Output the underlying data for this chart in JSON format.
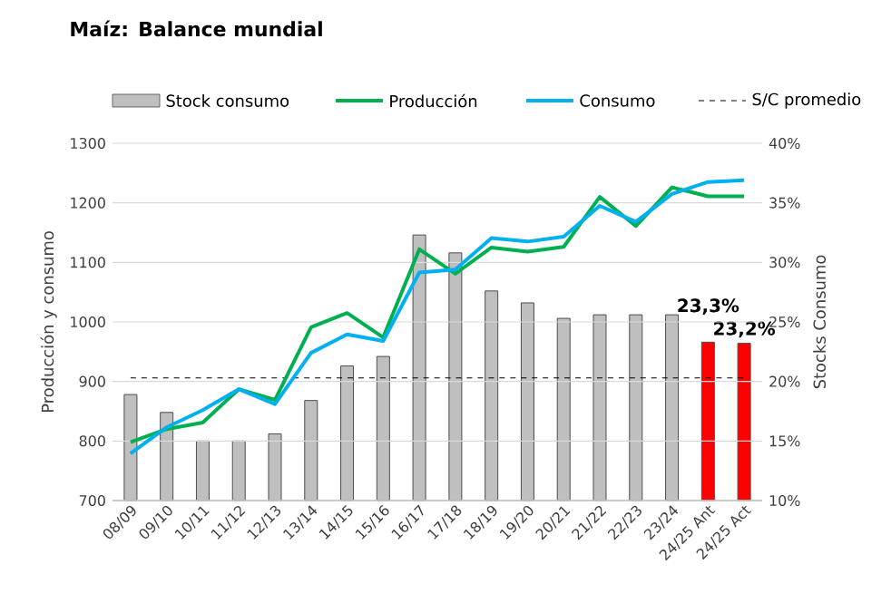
{
  "chart_data": {
    "type": "line",
    "title": "Maíz: Balance mundial",
    "ylabel": "Producción y consumo",
    "y2label": "Stocks Consumo",
    "categories": [
      "08/09",
      "09/10",
      "10/11",
      "11/12",
      "12/13",
      "13/14",
      "14/15",
      "15/16",
      "16/17",
      "17/18",
      "18/19",
      "19/20",
      "20/21",
      "21/22",
      "22/23",
      "23/24",
      "24/25 Ant",
      "24/25 Act"
    ],
    "series": [
      {
        "name": "Stock consumo",
        "type": "bar",
        "axis": "y2",
        "color": "#bfbfbf",
        "colors": [
          "#bfbfbf",
          "#bfbfbf",
          "#bfbfbf",
          "#bfbfbf",
          "#bfbfbf",
          "#bfbfbf",
          "#bfbfbf",
          "#bfbfbf",
          "#bfbfbf",
          "#bfbfbf",
          "#bfbfbf",
          "#bfbfbf",
          "#bfbfbf",
          "#bfbfbf",
          "#bfbfbf",
          "#bfbfbf",
          "#ff0000",
          "#ff0000"
        ],
        "values": [
          18.9,
          17.4,
          15.0,
          15.0,
          15.6,
          18.4,
          21.3,
          22.1,
          32.3,
          30.8,
          27.6,
          26.6,
          25.3,
          25.6,
          25.6,
          25.6,
          23.3,
          23.2
        ],
        "value_labels": [
          null,
          null,
          null,
          null,
          null,
          null,
          null,
          null,
          null,
          null,
          null,
          null,
          null,
          null,
          null,
          null,
          "23,3%",
          "23,2%"
        ]
      },
      {
        "name": "Producción",
        "color": "#00b050",
        "values": [
          798,
          820,
          831,
          887,
          869,
          991,
          1015,
          974,
          1122,
          1081,
          1125,
          1118,
          1126,
          1210,
          1161,
          1226,
          1211,
          1211
        ]
      },
      {
        "name": "Consumo",
        "color": "#00b0f0",
        "values": [
          779,
          823,
          852,
          887,
          862,
          948,
          979,
          968,
          1083,
          1088,
          1141,
          1135,
          1143,
          1195,
          1168,
          1215,
          1235,
          1238
        ]
      }
    ],
    "ylim": [
      700,
      1300
    ],
    "yticks": [
      700,
      800,
      900,
      1000,
      1100,
      1200,
      1300
    ],
    "y2lim": [
      10,
      40
    ],
    "y2ticks": [
      {
        "value": 10,
        "label": "10%"
      },
      {
        "value": 15,
        "label": "15%"
      },
      {
        "value": 20,
        "label": "20%"
      },
      {
        "value": 25,
        "label": "25%"
      },
      {
        "value": 30,
        "label": "30%"
      },
      {
        "value": 35,
        "label": "35%"
      },
      {
        "value": 40,
        "label": "40%"
      }
    ],
    "ref_lines": [
      {
        "axis": "y2",
        "value": 20.3,
        "label": "S/C promedio",
        "color": "#000000",
        "line_style": "dashed"
      }
    ],
    "grid": "y",
    "legend": "top",
    "marker": "none",
    "line_style": "solid"
  }
}
